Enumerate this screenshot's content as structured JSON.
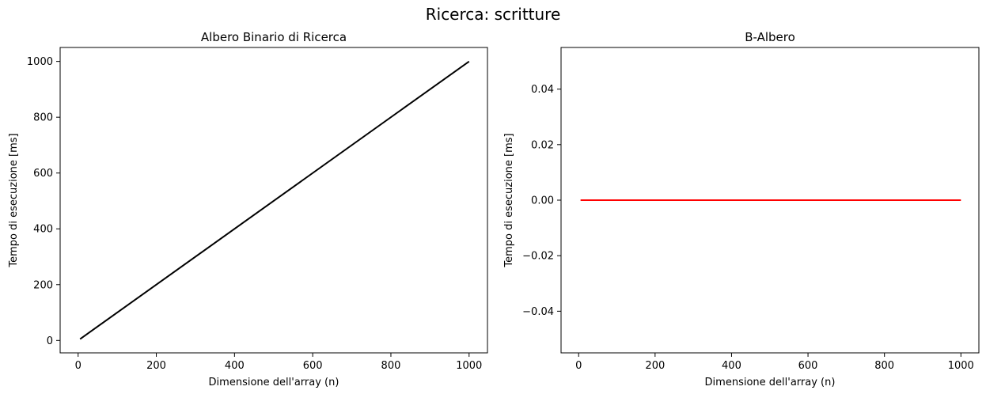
{
  "figure": {
    "suptitle": "Ricerca: scritture"
  },
  "chart_data": [
    {
      "type": "line",
      "title": "Albero Binario di Ricerca",
      "xlabel": "Dimensione dell'array (n)",
      "ylabel": "Tempo di esecuzione [ms]",
      "xlim": [
        -46,
        1047
      ],
      "ylim": [
        -44.5,
        1050
      ],
      "xticks": [
        0,
        200,
        400,
        600,
        800,
        1000
      ],
      "yticks": [
        0,
        200,
        400,
        600,
        800,
        1000
      ],
      "xtick_labels": [
        "0",
        "200",
        "400",
        "600",
        "800",
        "1000"
      ],
      "ytick_labels": [
        "0",
        "200",
        "400",
        "600",
        "800",
        "1000"
      ],
      "grid": false,
      "series": [
        {
          "color": "#000000",
          "x": [
            5,
            1000
          ],
          "y": [
            5,
            1000
          ]
        }
      ]
    },
    {
      "type": "line",
      "title": "B-Albero",
      "xlabel": "Dimensione dell'array (n)",
      "ylabel": "Tempo di esecuzione [ms]",
      "xlim": [
        -46,
        1047
      ],
      "ylim": [
        -0.055,
        0.055
      ],
      "xticks": [
        0,
        200,
        400,
        600,
        800,
        1000
      ],
      "yticks": [
        -0.04,
        -0.02,
        0.0,
        0.02,
        0.04
      ],
      "xtick_labels": [
        "0",
        "200",
        "400",
        "600",
        "800",
        "1000"
      ],
      "ytick_labels": [
        "−0.04",
        "−0.02",
        "0.00",
        "0.02",
        "0.04"
      ],
      "grid": false,
      "series": [
        {
          "color": "#ff0000",
          "x": [
            5,
            1000
          ],
          "y": [
            0,
            0
          ]
        }
      ]
    }
  ]
}
